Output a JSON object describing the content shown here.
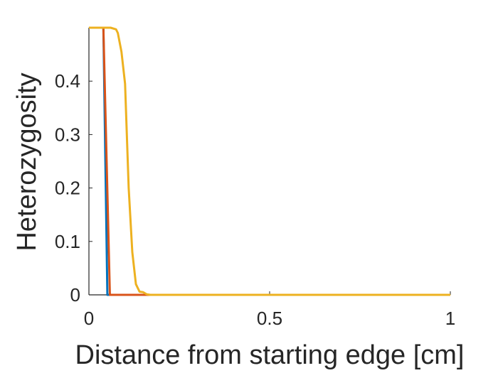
{
  "chart_data": {
    "type": "line",
    "title": "",
    "xlabel": "Distance from starting edge [cm]",
    "ylabel": "Heterozygosity",
    "xlim": [
      0,
      1
    ],
    "ylim": [
      0,
      0.5
    ],
    "xticks": [
      0,
      0.5,
      1
    ],
    "xtick_labels": [
      "0",
      "0.5",
      "1"
    ],
    "yticks": [
      0,
      0.1,
      0.2,
      0.3,
      0.4
    ],
    "ytick_labels": [
      "0",
      "0.1",
      "0.2",
      "0.3",
      "0.4"
    ],
    "grid": false,
    "series": [
      {
        "color": "#0072BD",
        "x": [
          0.04,
          0.051,
          0.06,
          1.0
        ],
        "y": [
          0.5,
          0.0,
          0.0,
          0.0
        ]
      },
      {
        "color": "#D95319",
        "x": [
          0.04,
          0.058,
          0.07,
          1.0
        ],
        "y": [
          0.5,
          0.0,
          0.0,
          0.0
        ]
      },
      {
        "color": "#EDB120",
        "x": [
          0.0,
          0.06,
          0.075,
          0.08,
          0.09,
          0.1,
          0.11,
          0.12,
          0.13,
          0.14,
          0.15,
          0.16,
          0.17,
          1.0
        ],
        "y": [
          0.5,
          0.5,
          0.497,
          0.49,
          0.455,
          0.395,
          0.2,
          0.08,
          0.02,
          0.006,
          0.005,
          0.001,
          0.0,
          0.0
        ]
      }
    ]
  }
}
